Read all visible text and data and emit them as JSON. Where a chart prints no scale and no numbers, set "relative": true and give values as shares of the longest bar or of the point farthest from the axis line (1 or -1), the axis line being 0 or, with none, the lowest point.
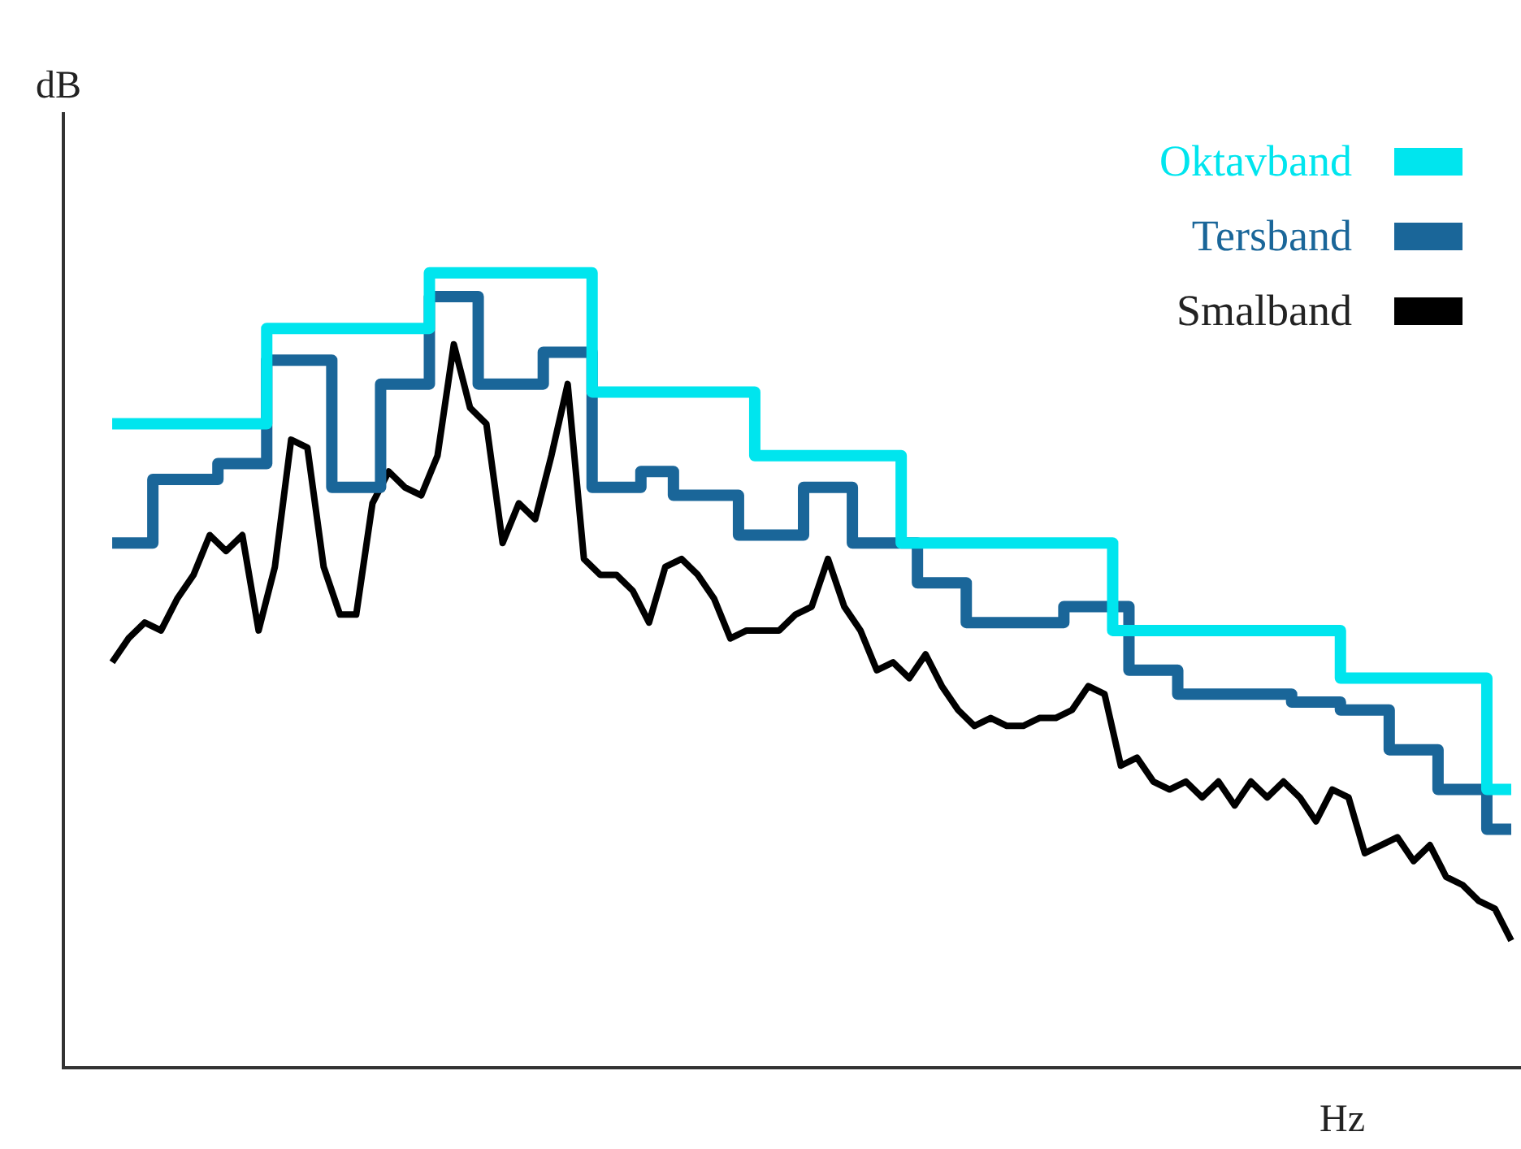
{
  "chart_data": {
    "type": "line",
    "relative": true,
    "xlabel": "Hz",
    "ylabel": "dB",
    "legend": "top right",
    "grid": false,
    "marker": "none",
    "categories": [
      null,
      null,
      null,
      null,
      null,
      null,
      null,
      null,
      null,
      null,
      null,
      null,
      null,
      null,
      null,
      null,
      null,
      null,
      null,
      null,
      null,
      null,
      null,
      null,
      null,
      null,
      null,
      null,
      null,
      null,
      null,
      null,
      null,
      null,
      null,
      null,
      null,
      null,
      null,
      null,
      null,
      null,
      null,
      null,
      null,
      null,
      null,
      null,
      null,
      null,
      null,
      null,
      null,
      null,
      null,
      null,
      null,
      null,
      null,
      null,
      null,
      null,
      null,
      null,
      null,
      null,
      null,
      null,
      null,
      null,
      null,
      null,
      null,
      null,
      null,
      null,
      null,
      null,
      null,
      null,
      null,
      null,
      null,
      null,
      null,
      null,
      null
    ],
    "series": [
      {
        "name": "Oktavband",
        "type": "step",
        "color": "#00e5ee",
        "values": [
          0.81,
          0.81,
          0.81,
          0.81,
          0.81,
          0.81,
          0.81,
          0.81,
          0.81,
          0.81,
          0.93,
          0.93,
          0.93,
          0.93,
          0.93,
          0.93,
          0.93,
          0.93,
          0.93,
          0.93,
          1.0,
          1.0,
          1.0,
          1.0,
          1.0,
          1.0,
          1.0,
          1.0,
          1.0,
          1.0,
          0.85,
          0.85,
          0.85,
          0.85,
          0.85,
          0.85,
          0.85,
          0.85,
          0.85,
          0.85,
          0.77,
          0.77,
          0.77,
          0.77,
          0.77,
          0.77,
          0.77,
          0.77,
          0.77,
          0.66,
          0.66,
          0.66,
          0.66,
          0.66,
          0.66,
          0.66,
          0.66,
          0.66,
          0.66,
          0.66,
          0.66,
          0.66,
          0.55,
          0.55,
          0.55,
          0.55,
          0.55,
          0.55,
          0.55,
          0.55,
          0.55,
          0.55,
          0.55,
          0.55,
          0.55,
          0.55,
          0.49,
          0.49,
          0.49,
          0.49,
          0.49,
          0.49,
          0.49,
          0.49,
          0.49,
          0.35,
          0.35
        ]
      },
      {
        "name": "Tersband",
        "type": "step",
        "color": "#1a6699",
        "values": [
          0.66,
          0.66,
          0.66,
          0.74,
          0.74,
          0.74,
          0.74,
          0.76,
          0.76,
          0.76,
          0.89,
          0.89,
          0.89,
          0.89,
          0.73,
          0.73,
          0.73,
          0.86,
          0.86,
          0.86,
          0.97,
          0.97,
          0.97,
          0.86,
          0.86,
          0.86,
          0.86,
          0.9,
          0.9,
          0.9,
          0.73,
          0.73,
          0.73,
          0.75,
          0.75,
          0.72,
          0.72,
          0.72,
          0.72,
          0.67,
          0.67,
          0.67,
          0.67,
          0.73,
          0.73,
          0.73,
          0.66,
          0.66,
          0.66,
          0.66,
          0.61,
          0.61,
          0.61,
          0.56,
          0.56,
          0.56,
          0.56,
          0.56,
          0.56,
          0.58,
          0.58,
          0.58,
          0.58,
          0.5,
          0.5,
          0.5,
          0.47,
          0.47,
          0.47,
          0.47,
          0.47,
          0.47,
          0.47,
          0.46,
          0.46,
          0.46,
          0.45,
          0.45,
          0.45,
          0.4,
          0.4,
          0.4,
          0.35,
          0.35,
          0.35,
          0.3,
          0.3
        ]
      },
      {
        "name": "Smalband",
        "type": "line",
        "color": "#000000",
        "values": [
          0.51,
          0.54,
          0.56,
          0.55,
          0.59,
          0.62,
          0.67,
          0.65,
          0.67,
          0.55,
          0.63,
          0.79,
          0.78,
          0.63,
          0.57,
          0.57,
          0.71,
          0.75,
          0.73,
          0.72,
          0.77,
          0.91,
          0.83,
          0.81,
          0.66,
          0.71,
          0.69,
          0.77,
          0.86,
          0.64,
          0.62,
          0.62,
          0.6,
          0.56,
          0.63,
          0.64,
          0.62,
          0.59,
          0.54,
          0.55,
          0.55,
          0.55,
          0.57,
          0.58,
          0.64,
          0.58,
          0.55,
          0.5,
          0.51,
          0.49,
          0.52,
          0.48,
          0.45,
          0.43,
          0.44,
          0.43,
          0.43,
          0.44,
          0.44,
          0.45,
          0.48,
          0.47,
          0.38,
          0.39,
          0.36,
          0.35,
          0.36,
          0.34,
          0.36,
          0.33,
          0.36,
          0.34,
          0.36,
          0.34,
          0.31,
          0.35,
          0.34,
          0.27,
          0.28,
          0.29,
          0.26,
          0.28,
          0.24,
          0.23,
          0.21,
          0.2,
          0.16
        ]
      }
    ]
  }
}
